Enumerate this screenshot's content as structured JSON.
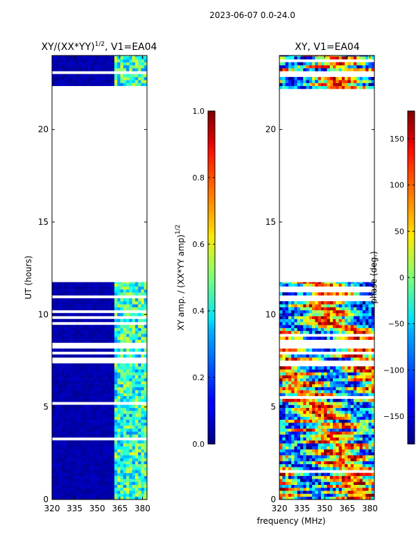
{
  "suptitle": "2023-06-07 0.0-24.0",
  "chart_data": [
    {
      "type": "heatmap",
      "title_main": "XY/(XX*YY)",
      "title_exp": "1/2",
      "title_rest": ", V1=EA04",
      "ylabel": "UT (hours)",
      "xlabel": "",
      "xlim": [
        320,
        383
      ],
      "ylim": [
        0,
        24
      ],
      "xticks": [
        320,
        335,
        350,
        365,
        380
      ],
      "yticks": [
        0,
        5,
        10,
        15,
        20
      ],
      "data_coverage_hours": [
        [
          0,
          11.75
        ],
        [
          22.2,
          24
        ]
      ],
      "colorbar": {
        "label_main": "XY amp. / (XX*YY amp)",
        "label_exp": "1/2",
        "range": [
          0.0,
          1.0
        ],
        "ticks": [
          "0.0",
          "0.2",
          "0.4",
          "0.6",
          "0.8",
          "1.0"
        ],
        "tick_values": [
          0.0,
          0.2,
          0.4,
          0.6,
          0.8,
          1.0
        ]
      }
    },
    {
      "type": "heatmap",
      "title": "XY, V1=EA04",
      "xlabel": "frequency (MHz)",
      "xlim": [
        320,
        383
      ],
      "ylim": [
        0,
        24
      ],
      "xticks": [
        320,
        335,
        350,
        365,
        380
      ],
      "yticks": [
        0,
        5,
        10,
        15,
        20
      ],
      "data_coverage_hours": [
        [
          0,
          11.75
        ],
        [
          22.2,
          24
        ]
      ],
      "colorbar": {
        "label": "phase (deg.)",
        "range": [
          -180,
          180
        ],
        "ticks": [
          "−150",
          "−100",
          "−50",
          "0",
          "50",
          "100",
          "150"
        ],
        "tick_values": [
          -150,
          -100,
          -50,
          0,
          50,
          100,
          150
        ]
      }
    }
  ]
}
